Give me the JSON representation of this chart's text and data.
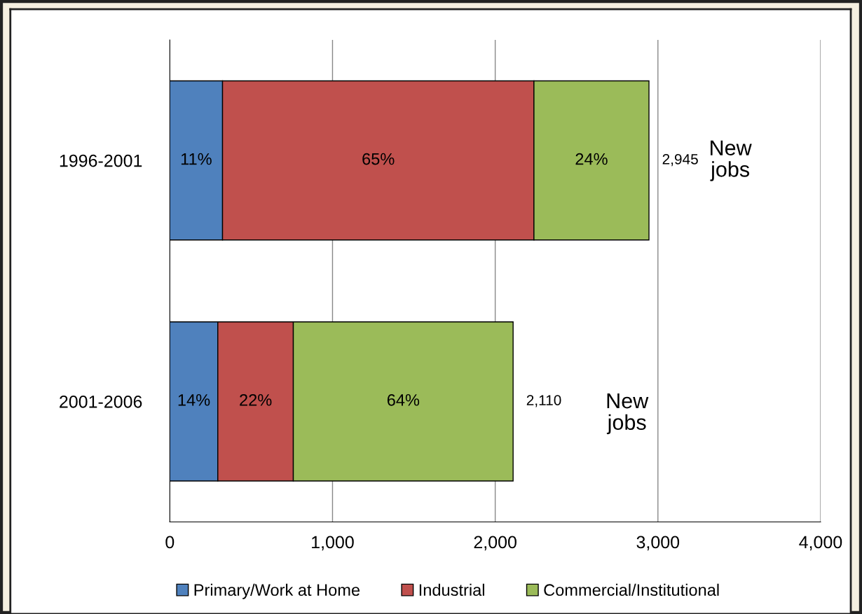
{
  "chart_data": {
    "type": "bar",
    "orientation": "horizontal",
    "stacked": true,
    "categories": [
      "1996-2001",
      "2001-2006"
    ],
    "series": [
      {
        "name": "Primary/Work at Home",
        "color": "#4f81bd",
        "values": [
          324,
          295
        ]
      },
      {
        "name": "Industrial",
        "color": "#c0504d",
        "values": [
          1914,
          464
        ]
      },
      {
        "name": "Commercial/Institutional",
        "color": "#9bbb59",
        "values": [
          707,
          1351
        ]
      }
    ],
    "totals": [
      "2,945",
      "2,110"
    ],
    "annotations": [
      "11%",
      "65%",
      "24%",
      "14%",
      "22%",
      "64%",
      "New jobs",
      "New jobs"
    ],
    "xlim": [
      0,
      4000
    ],
    "xticks": [
      0,
      {
        "value": 1000,
        "label": "1,000"
      },
      {
        "value": 2000,
        "label": "2,000"
      },
      {
        "value": 3000,
        "label": "3,000"
      },
      {
        "value": 4000,
        "label": "4,000"
      }
    ],
    "grid": "x",
    "legend": "bottom"
  }
}
